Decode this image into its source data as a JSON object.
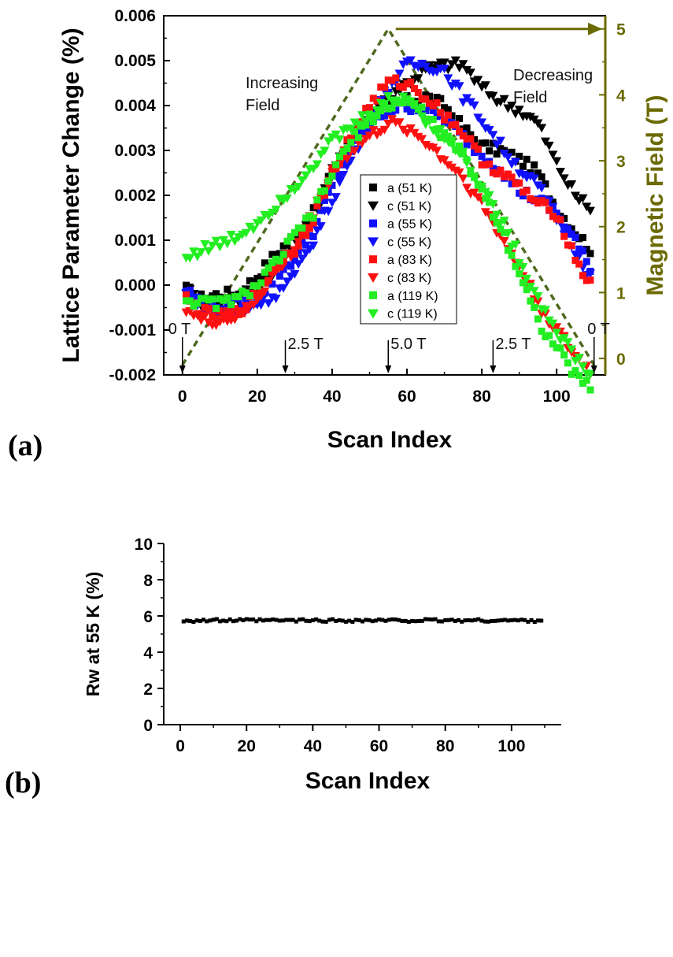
{
  "colors": {
    "black": "#000000",
    "blue": "#1010ff",
    "red": "#ff1010",
    "green": "#22ee22",
    "olive": "#6b6a00",
    "field_line": "#4f6a1f"
  },
  "panel_a": {
    "label": "(a)",
    "annotations": {
      "increasing": [
        "Increasing",
        "Field"
      ],
      "decreasing": [
        "Decreasing",
        "Field"
      ],
      "field_marks": [
        {
          "x": 0,
          "label": "0 T"
        },
        {
          "x": 27.5,
          "label": "2.5 T"
        },
        {
          "x": 55,
          "label": "5.0 T"
        },
        {
          "x": 83,
          "label": "2.5 T"
        },
        {
          "x": 110,
          "label": "0 T"
        }
      ]
    }
  },
  "panel_b": {
    "label": "(b)"
  },
  "chart_data": [
    {
      "type": "scatter",
      "xlabel": "Scan Index",
      "ylabel": "Lattice Parameter Change (%)",
      "y2label": "Magnetic Field (T)",
      "xlim": [
        -5,
        113
      ],
      "ylim": [
        -0.002,
        0.006
      ],
      "y2lim": [
        -0.25,
        5.2
      ],
      "xticks": [
        0,
        20,
        40,
        60,
        80,
        100
      ],
      "yticks": [
        -0.002,
        -0.001,
        0.0,
        0.001,
        0.002,
        0.003,
        0.004,
        0.005,
        0.006
      ],
      "yticklabels": [
        "-0.002",
        "-0.001",
        "0.000",
        "0.001",
        "0.002",
        "0.003",
        "0.004",
        "0.005",
        "0.006"
      ],
      "y2ticks": [
        0,
        1,
        2,
        3,
        4,
        5
      ],
      "legend_position": "center",
      "series": [
        {
          "name": "a (51 K)",
          "marker": "square",
          "color": "#000000",
          "knots": [
            [
              1,
              -0.0001
            ],
            [
              5,
              -0.0003
            ],
            [
              10,
              -0.0002
            ],
            [
              15,
              -0.0002
            ],
            [
              20,
              0.0002
            ],
            [
              25,
              0.0007
            ],
            [
              30,
              0.0011
            ],
            [
              35,
              0.0016
            ],
            [
              40,
              0.0025
            ],
            [
              45,
              0.0033
            ],
            [
              50,
              0.0037
            ],
            [
              55,
              0.004
            ],
            [
              60,
              0.0041
            ],
            [
              65,
              0.0042
            ],
            [
              70,
              0.004
            ],
            [
              75,
              0.0035
            ],
            [
              80,
              0.0031
            ],
            [
              85,
              0.003
            ],
            [
              90,
              0.0028
            ],
            [
              95,
              0.0025
            ],
            [
              100,
              0.0017
            ],
            [
              105,
              0.0012
            ],
            [
              109,
              0.0008
            ]
          ]
        },
        {
          "name": "c (51 K)",
          "marker": "triangle",
          "color": "#000000",
          "knots": [
            [
              1,
              -0.0001
            ],
            [
              5,
              -0.0004
            ],
            [
              10,
              -0.0005
            ],
            [
              15,
              -0.0003
            ],
            [
              20,
              0.0
            ],
            [
              25,
              0.0004
            ],
            [
              30,
              0.0009
            ],
            [
              35,
              0.0015
            ],
            [
              40,
              0.0025
            ],
            [
              45,
              0.0032
            ],
            [
              50,
              0.0038
            ],
            [
              55,
              0.0042
            ],
            [
              60,
              0.0045
            ],
            [
              65,
              0.0048
            ],
            [
              70,
              0.0049
            ],
            [
              75,
              0.0049
            ],
            [
              80,
              0.0044
            ],
            [
              85,
              0.0041
            ],
            [
              90,
              0.0039
            ],
            [
              95,
              0.0036
            ],
            [
              100,
              0.0027
            ],
            [
              105,
              0.002
            ],
            [
              109,
              0.0017
            ]
          ]
        },
        {
          "name": "a (55 K)",
          "marker": "square",
          "color": "#1010ff",
          "knots": [
            [
              1,
              -0.0001
            ],
            [
              5,
              -0.0004
            ],
            [
              10,
              -0.0005
            ],
            [
              15,
              -0.0004
            ],
            [
              20,
              -0.0003
            ],
            [
              25,
              0.0002
            ],
            [
              30,
              0.0006
            ],
            [
              35,
              0.0012
            ],
            [
              40,
              0.0022
            ],
            [
              45,
              0.003
            ],
            [
              50,
              0.0036
            ],
            [
              55,
              0.0039
            ],
            [
              60,
              0.004
            ],
            [
              65,
              0.0039
            ],
            [
              70,
              0.0037
            ],
            [
              75,
              0.0033
            ],
            [
              80,
              0.0029
            ],
            [
              85,
              0.0026
            ],
            [
              90,
              0.0021
            ],
            [
              95,
              0.0019
            ],
            [
              100,
              0.0016
            ],
            [
              105,
              0.001
            ],
            [
              109,
              0.0003
            ]
          ]
        },
        {
          "name": "c (55 K)",
          "marker": "triangle",
          "color": "#1010ff",
          "knots": [
            [
              1,
              -0.0002
            ],
            [
              5,
              -0.0005
            ],
            [
              10,
              -0.0006
            ],
            [
              15,
              -0.0006
            ],
            [
              20,
              -0.0004
            ],
            [
              25,
              -0.0002
            ],
            [
              30,
              0.0002
            ],
            [
              35,
              0.001
            ],
            [
              40,
              0.0019
            ],
            [
              45,
              0.0028
            ],
            [
              50,
              0.0036
            ],
            [
              55,
              0.0044
            ],
            [
              60,
              0.0049
            ],
            [
              65,
              0.0049
            ],
            [
              70,
              0.0048
            ],
            [
              75,
              0.0042
            ],
            [
              80,
              0.0037
            ],
            [
              85,
              0.0031
            ],
            [
              90,
              0.0026
            ],
            [
              95,
              0.0022
            ],
            [
              100,
              0.0015
            ],
            [
              105,
              0.0008
            ],
            [
              109,
              0.0002
            ]
          ]
        },
        {
          "name": "a (83 K)",
          "marker": "square",
          "color": "#ff1010",
          "knots": [
            [
              1,
              -0.0003
            ],
            [
              5,
              -0.0006
            ],
            [
              10,
              -0.0007
            ],
            [
              15,
              -0.0006
            ],
            [
              20,
              -0.0002
            ],
            [
              25,
              0.0004
            ],
            [
              30,
              0.0008
            ],
            [
              35,
              0.0015
            ],
            [
              40,
              0.0025
            ],
            [
              45,
              0.0033
            ],
            [
              50,
              0.004
            ],
            [
              55,
              0.0045
            ],
            [
              60,
              0.0045
            ],
            [
              65,
              0.0042
            ],
            [
              70,
              0.0038
            ],
            [
              75,
              0.0034
            ],
            [
              80,
              0.0028
            ],
            [
              85,
              0.0025
            ],
            [
              90,
              0.0022
            ],
            [
              95,
              0.0018
            ],
            [
              100,
              0.0016
            ],
            [
              105,
              0.0006
            ],
            [
              109,
              0.0
            ]
          ]
        },
        {
          "name": "c (83 K)",
          "marker": "triangle",
          "color": "#ff1010",
          "knots": [
            [
              1,
              -0.0005
            ],
            [
              5,
              -0.0008
            ],
            [
              10,
              -0.0008
            ],
            [
              15,
              -0.0007
            ],
            [
              20,
              -0.0003
            ],
            [
              25,
              0.0003
            ],
            [
              30,
              0.0008
            ],
            [
              35,
              0.0016
            ],
            [
              40,
              0.0025
            ],
            [
              45,
              0.003
            ],
            [
              50,
              0.0033
            ],
            [
              55,
              0.0036
            ],
            [
              60,
              0.0035
            ],
            [
              65,
              0.0032
            ],
            [
              70,
              0.0028
            ],
            [
              75,
              0.0024
            ],
            [
              80,
              0.0018
            ],
            [
              85,
              0.0011
            ],
            [
              90,
              0.0004
            ],
            [
              95,
              -0.0004
            ],
            [
              100,
              -0.001
            ],
            [
              105,
              -0.0016
            ],
            [
              109,
              -0.0019
            ]
          ]
        },
        {
          "name": "a (119 K)",
          "marker": "square",
          "color": "#22ee22",
          "knots": [
            [
              1,
              -0.0003
            ],
            [
              5,
              -0.0004
            ],
            [
              10,
              -0.0004
            ],
            [
              15,
              -0.0003
            ],
            [
              20,
              0.0
            ],
            [
              25,
              0.0005
            ],
            [
              30,
              0.0011
            ],
            [
              35,
              0.0016
            ],
            [
              40,
              0.0025
            ],
            [
              45,
              0.0032
            ],
            [
              50,
              0.0037
            ],
            [
              55,
              0.004
            ],
            [
              60,
              0.0041
            ],
            [
              65,
              0.0038
            ],
            [
              70,
              0.0033
            ],
            [
              75,
              0.0029
            ],
            [
              80,
              0.0021
            ],
            [
              85,
              0.0013
            ],
            [
              90,
              0.0003
            ],
            [
              95,
              -0.0008
            ],
            [
              100,
              -0.0014
            ],
            [
              105,
              -0.002
            ],
            [
              109,
              -0.0023
            ]
          ]
        },
        {
          "name": "c (119 K)",
          "marker": "triangle",
          "color": "#22ee22",
          "knots": [
            [
              1,
              0.0006
            ],
            [
              5,
              0.0008
            ],
            [
              10,
              0.0009
            ],
            [
              15,
              0.0011
            ],
            [
              20,
              0.0014
            ],
            [
              25,
              0.0018
            ],
            [
              30,
              0.0022
            ],
            [
              35,
              0.0027
            ],
            [
              40,
              0.0032
            ],
            [
              45,
              0.0035
            ],
            [
              50,
              0.0038
            ],
            [
              55,
              0.0041
            ],
            [
              60,
              0.0042
            ],
            [
              65,
              0.0037
            ],
            [
              70,
              0.0033
            ],
            [
              75,
              0.0029
            ],
            [
              80,
              0.0022
            ],
            [
              85,
              0.0015
            ],
            [
              90,
              0.0006
            ],
            [
              95,
              -0.0003
            ],
            [
              100,
              -0.001
            ],
            [
              105,
              -0.0016
            ],
            [
              109,
              -0.002
            ]
          ]
        },
        {
          "marker": "dashed-line",
          "color": "#4f6a1f",
          "axis": "y2",
          "points": [
            [
              0,
              -0.1
            ],
            [
              55,
              5.0
            ],
            [
              110,
              -0.1
            ]
          ]
        }
      ],
      "arrow_to_right_axis": {
        "from_x": 57,
        "to_x": 110,
        "y2": 5.0
      }
    },
    {
      "type": "scatter",
      "xlabel": "Scan Index",
      "ylabel": "Rw at 55 K (%)",
      "xlim": [
        -5,
        115
      ],
      "ylim": [
        0,
        10
      ],
      "xticks": [
        0,
        20,
        40,
        60,
        80,
        100
      ],
      "yticks": [
        0,
        2,
        4,
        6,
        8,
        10
      ],
      "series": [
        {
          "marker": "square",
          "color": "#000000",
          "x_range": [
            1,
            109
          ],
          "y_base": 5.75,
          "y_jitter": 0.08
        }
      ]
    }
  ]
}
